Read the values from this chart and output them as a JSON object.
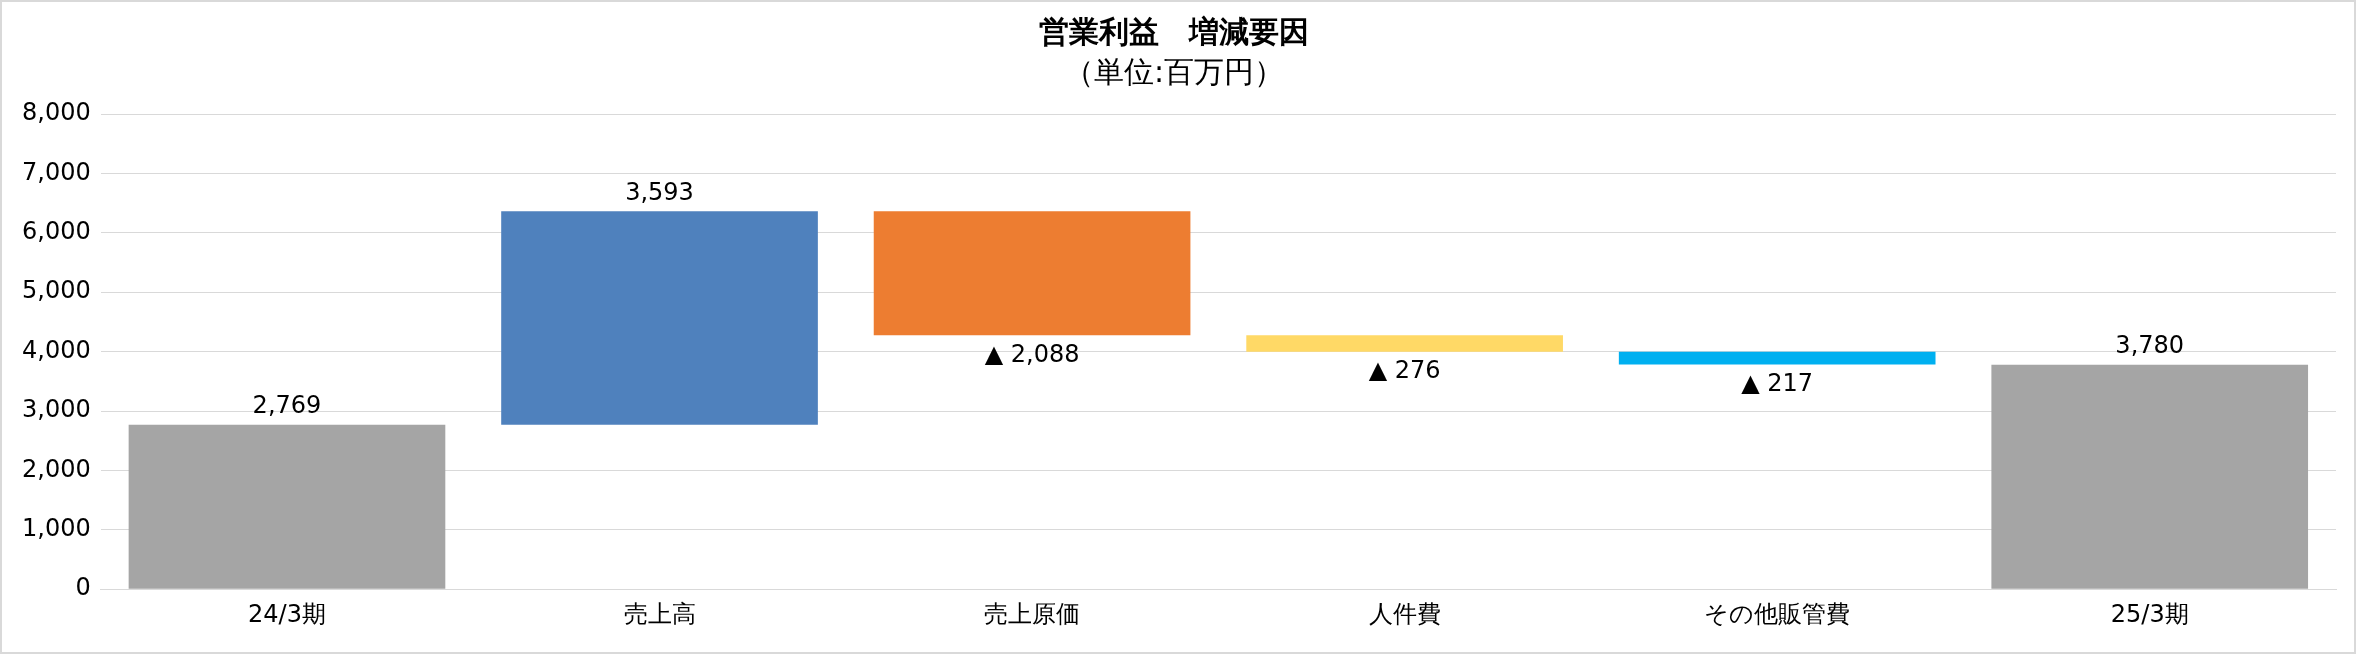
{
  "chart_data": {
    "type": "bar",
    "title": "営業利益　増減要因",
    "subtitle": "（単位:百万円）",
    "categories": [
      "24/3期",
      "売上高",
      "売上原価",
      "人件費",
      "その他販管費",
      "25/3期"
    ],
    "values": [
      2769,
      3593,
      -2088,
      -276,
      -217,
      3780
    ],
    "base": [
      0,
      2769,
      6362,
      4274,
      3998,
      0
    ],
    "colors": [
      "#a5a5a5",
      "#4f81bd",
      "#ed7d31",
      "#ffd966",
      "#00b0f0",
      "#a5a5a5"
    ],
    "value_labels": [
      "2,769",
      "3,593",
      "▲ 2,088",
      "▲ 276",
      "▲ 217",
      "3,780"
    ],
    "ylim": [
      0,
      8000
    ],
    "yticks": [
      {
        "value": 0,
        "label": "0"
      },
      {
        "value": 1000,
        "label": "1,000"
      },
      {
        "value": 2000,
        "label": "2,000"
      },
      {
        "value": 3000,
        "label": "3,000"
      },
      {
        "value": 4000,
        "label": "4,000"
      },
      {
        "value": 5000,
        "label": "5,000"
      },
      {
        "value": 6000,
        "label": "6,000"
      },
      {
        "value": 7000,
        "label": "7,000"
      },
      {
        "value": 8000,
        "label": "8,000"
      }
    ],
    "grid": "y",
    "legend": false
  }
}
